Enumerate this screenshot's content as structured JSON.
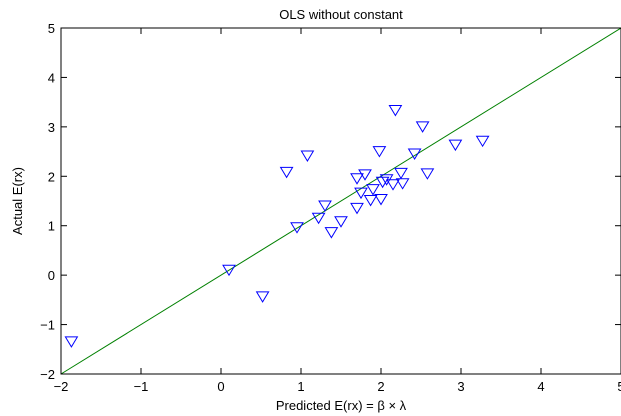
{
  "chart_data": {
    "type": "scatter",
    "title": "OLS without constant",
    "xlabel": "Predicted E(rx) = β × λ",
    "ylabel": "Actual E(rx)",
    "xlim": [
      -2,
      5
    ],
    "ylim": [
      -2,
      5
    ],
    "xticks": [
      "−2",
      "−1",
      "0",
      "1",
      "2",
      "3",
      "4",
      "5"
    ],
    "yticks": [
      "−2",
      "−1",
      "0",
      "1",
      "2",
      "3",
      "4",
      "5"
    ],
    "grid": false,
    "marker": "down-triangle",
    "marker_color": "#0000ff",
    "reference_line": {
      "from": [
        -2,
        -2
      ],
      "to": [
        5,
        5
      ],
      "color": "#008000"
    },
    "points": [
      {
        "x": -1.87,
        "y": -1.33
      },
      {
        "x": 0.1,
        "y": 0.12
      },
      {
        "x": 0.52,
        "y": -0.42
      },
      {
        "x": 0.82,
        "y": 2.1
      },
      {
        "x": 0.95,
        "y": 0.98
      },
      {
        "x": 1.08,
        "y": 2.43
      },
      {
        "x": 1.22,
        "y": 1.17
      },
      {
        "x": 1.3,
        "y": 1.42
      },
      {
        "x": 1.38,
        "y": 0.88
      },
      {
        "x": 1.5,
        "y": 1.1
      },
      {
        "x": 1.7,
        "y": 1.37
      },
      {
        "x": 1.7,
        "y": 1.97
      },
      {
        "x": 1.75,
        "y": 1.68
      },
      {
        "x": 1.8,
        "y": 2.05
      },
      {
        "x": 1.87,
        "y": 1.53
      },
      {
        "x": 1.9,
        "y": 1.75
      },
      {
        "x": 1.98,
        "y": 2.52
      },
      {
        "x": 2.0,
        "y": 1.55
      },
      {
        "x": 2.02,
        "y": 1.9
      },
      {
        "x": 2.07,
        "y": 1.95
      },
      {
        "x": 2.15,
        "y": 1.85
      },
      {
        "x": 2.18,
        "y": 3.35
      },
      {
        "x": 2.25,
        "y": 2.08
      },
      {
        "x": 2.27,
        "y": 1.87
      },
      {
        "x": 2.42,
        "y": 2.47
      },
      {
        "x": 2.52,
        "y": 3.02
      },
      {
        "x": 2.58,
        "y": 2.07
      },
      {
        "x": 2.93,
        "y": 2.65
      },
      {
        "x": 3.27,
        "y": 2.73
      }
    ]
  }
}
